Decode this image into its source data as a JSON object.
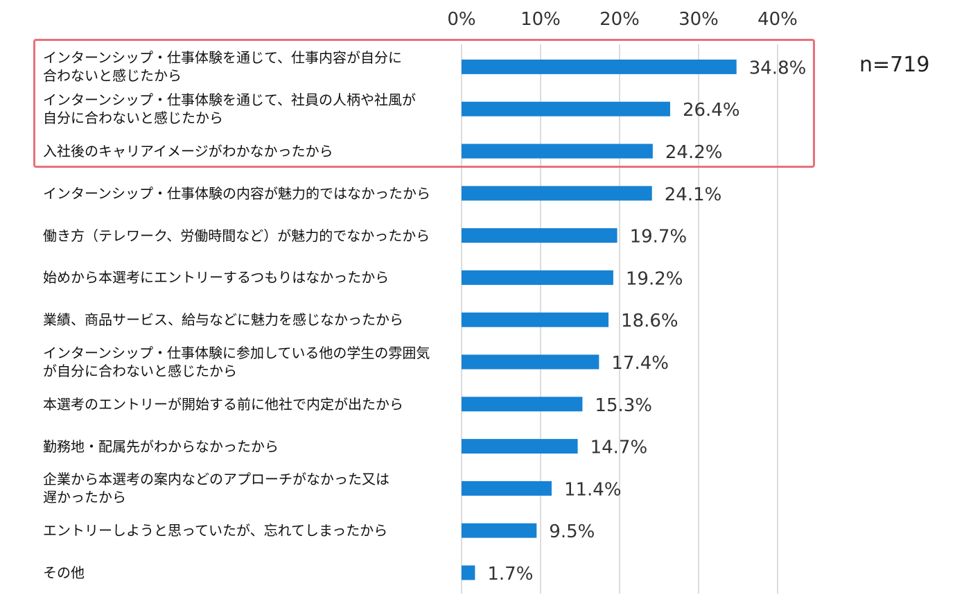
{
  "chart_data": {
    "type": "bar",
    "orientation": "horizontal",
    "title": "",
    "xlabel": "",
    "ylabel": "",
    "xlim": [
      0,
      40
    ],
    "x_ticks": [
      "0%",
      "10%",
      "20%",
      "30%",
      "40%"
    ],
    "x_tick_values": [
      0,
      10,
      20,
      30,
      40
    ],
    "grid": true,
    "bar_color": "#1682d4",
    "highlight_color": "#e8707a",
    "highlighted_categories": 3,
    "sample_size_label": "n=719",
    "categories": [
      {
        "line1": "インターンシップ・仕事体験を通じて、仕事内容が自分に",
        "line2": "合わないと感じたから"
      },
      {
        "line1": "インターンシップ・仕事体験を通じて、社員の人柄や社風が",
        "line2": "自分に合わないと感じたから"
      },
      {
        "line1": "入社後のキャリアイメージがわかなかったから",
        "line2": ""
      },
      {
        "line1": "インターンシップ・仕事体験の内容が魅力的ではなかったから",
        "line2": ""
      },
      {
        "line1": "働き方（テレワーク、労働時間など）が魅力的でなかったから",
        "line2": ""
      },
      {
        "line1": "始めから本選考にエントリーするつもりはなかったから",
        "line2": ""
      },
      {
        "line1": "業績、商品サービス、給与などに魅力を感じなかったから",
        "line2": ""
      },
      {
        "line1": "インターンシップ・仕事体験に参加している他の学生の雰囲気",
        "line2": "が自分に合わないと感じたから"
      },
      {
        "line1": "本選考のエントリーが開始する前に他社で内定が出たから",
        "line2": ""
      },
      {
        "line1": "勤務地・配属先がわからなかったから",
        "line2": ""
      },
      {
        "line1": "企業から本選考の案内などのアプローチがなかった又は",
        "line2": "遅かったから"
      },
      {
        "line1": "エントリーしようと思っていたが、忘れてしまったから",
        "line2": ""
      },
      {
        "line1": "その他",
        "line2": ""
      }
    ],
    "values": [
      34.8,
      26.4,
      24.2,
      24.1,
      19.7,
      19.2,
      18.6,
      17.4,
      15.3,
      14.7,
      11.4,
      9.5,
      1.7
    ],
    "value_labels": [
      "34.8%",
      "26.4%",
      "24.2%",
      "24.1%",
      "19.7%",
      "19.2%",
      "18.6%",
      "17.4%",
      "15.3%",
      "14.7%",
      "11.4%",
      "9.5%",
      "1.7%"
    ]
  }
}
